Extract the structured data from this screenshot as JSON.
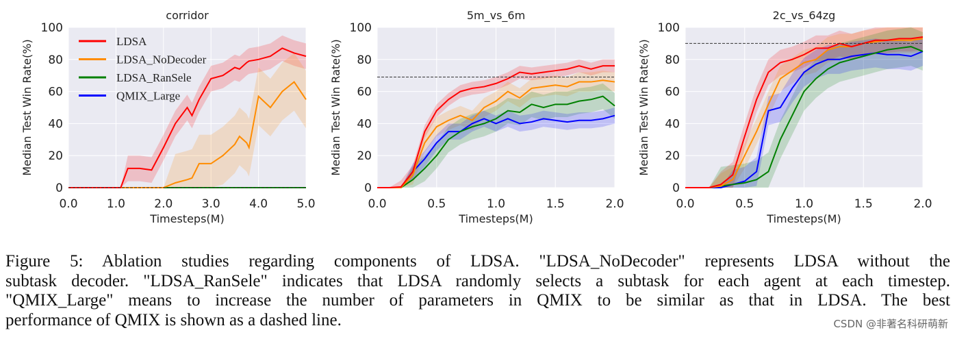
{
  "chart_data": [
    {
      "type": "line",
      "title": "corridor",
      "xlabel": "Timesteps(M)",
      "ylabel": "Median Test Win Rate(%)",
      "xlim": [
        0,
        5
      ],
      "ylim": [
        0,
        100
      ],
      "xticks": [
        "0.0",
        "1.0",
        "2.0",
        "3.0",
        "4.0",
        "5.0"
      ],
      "yticks": [
        "0",
        "20",
        "40",
        "60",
        "80",
        "100"
      ],
      "grid": true,
      "legend": "top-left",
      "qmix_best": 0,
      "x": [
        0,
        0.5,
        1.0,
        1.1,
        1.25,
        1.5,
        1.75,
        2.0,
        2.25,
        2.5,
        2.6,
        2.75,
        3.0,
        3.25,
        3.5,
        3.6,
        3.75,
        3.8,
        4.0,
        4.25,
        4.5,
        4.75,
        5.0
      ],
      "series": [
        {
          "name": "LDSA",
          "color": "#ff0000",
          "spread": 8,
          "values": [
            0,
            0,
            0,
            0,
            12,
            12,
            11,
            25,
            40,
            50,
            45,
            55,
            68,
            70,
            75,
            74,
            78,
            79,
            80,
            82,
            87,
            84,
            82
          ]
        },
        {
          "name": "LDSA_NoDecoder",
          "color": "#ff8c00",
          "spread": 18,
          "values": [
            0,
            0,
            0,
            0,
            0,
            0,
            0,
            0,
            3,
            5,
            6,
            15,
            15,
            20,
            27,
            32,
            28,
            25,
            57,
            50,
            60,
            66,
            55
          ]
        },
        {
          "name": "LDSA_RanSele",
          "color": "#008000",
          "spread": 0,
          "values": [
            0,
            0,
            0,
            0,
            0,
            0,
            0,
            0,
            0,
            0,
            0,
            0,
            0,
            0,
            0,
            0,
            0,
            0,
            0,
            0,
            0,
            0,
            0
          ]
        },
        {
          "name": "QMIX_Large",
          "color": "#0000ff",
          "spread": 0,
          "values": [
            0,
            0,
            0,
            0,
            0,
            0,
            0,
            0,
            0,
            0,
            0,
            0,
            0,
            0,
            0,
            0,
            0,
            0,
            0,
            0,
            0,
            0,
            0
          ]
        }
      ]
    },
    {
      "type": "line",
      "title": "5m_vs_6m",
      "xlabel": "Timesteps(M)",
      "ylabel": "Median Test Win Rate(%)",
      "xlim": [
        0,
        2
      ],
      "ylim": [
        0,
        100
      ],
      "xticks": [
        "0.0",
        "0.5",
        "1.0",
        "1.5",
        "2.0"
      ],
      "yticks": [
        "0",
        "20",
        "40",
        "60",
        "80",
        "100"
      ],
      "grid": true,
      "qmix_best": 69,
      "x": [
        0,
        0.1,
        0.2,
        0.3,
        0.4,
        0.5,
        0.6,
        0.7,
        0.8,
        0.9,
        1.0,
        1.1,
        1.2,
        1.3,
        1.4,
        1.5,
        1.6,
        1.7,
        1.8,
        1.9,
        2.0
      ],
      "series": [
        {
          "name": "LDSA",
          "color": "#ff0000",
          "spread": 4,
          "values": [
            0,
            0,
            0.5,
            10,
            35,
            48,
            55,
            60,
            62,
            63,
            65,
            68,
            72,
            71,
            72,
            73,
            74,
            76,
            74,
            76,
            76
          ]
        },
        {
          "name": "LDSA_NoDecoder",
          "color": "#ff8c00",
          "spread": 6,
          "values": [
            0,
            0,
            0,
            8,
            28,
            38,
            42,
            45,
            42,
            50,
            54,
            60,
            56,
            62,
            63,
            64,
            63,
            66,
            66,
            67,
            66
          ]
        },
        {
          "name": "LDSA_RanSele",
          "color": "#008000",
          "spread": 8,
          "values": [
            0,
            0,
            0,
            5,
            12,
            20,
            30,
            35,
            38,
            40,
            43,
            48,
            47,
            52,
            50,
            52,
            52,
            54,
            55,
            57,
            51
          ]
        },
        {
          "name": "QMIX_Large",
          "color": "#0000ff",
          "spread": 5,
          "values": [
            0,
            0,
            0,
            10,
            18,
            28,
            35,
            35,
            40,
            43,
            40,
            43,
            40,
            41,
            43,
            42,
            41,
            42,
            42,
            43,
            45
          ]
        }
      ]
    },
    {
      "type": "line",
      "title": "2c_vs_64zg",
      "xlabel": "Timesteps(M)",
      "ylabel": "Median Test Win Rate(%)",
      "xlim": [
        0,
        2
      ],
      "ylim": [
        0,
        100
      ],
      "xticks": [
        "0.0",
        "0.5",
        "1.0",
        "1.5",
        "2.0"
      ],
      "yticks": [
        "0",
        "20",
        "40",
        "60",
        "80",
        "100"
      ],
      "grid": true,
      "qmix_best": 90,
      "x": [
        0,
        0.1,
        0.2,
        0.3,
        0.4,
        0.5,
        0.6,
        0.7,
        0.8,
        0.9,
        1.0,
        1.1,
        1.2,
        1.3,
        1.4,
        1.5,
        1.6,
        1.7,
        1.8,
        1.9,
        2.0
      ],
      "series": [
        {
          "name": "LDSA",
          "color": "#ff0000",
          "spread": 8,
          "values": [
            0,
            0,
            0,
            2,
            8,
            32,
            55,
            72,
            78,
            80,
            83,
            87,
            87,
            90,
            88,
            90,
            92,
            92,
            93,
            93,
            94
          ]
        },
        {
          "name": "LDSA_NoDecoder",
          "color": "#ff8c00",
          "spread": 8,
          "values": [
            0,
            0,
            0,
            1,
            5,
            20,
            35,
            52,
            68,
            73,
            78,
            80,
            86,
            88,
            88,
            90,
            91,
            92,
            92,
            92,
            93
          ]
        },
        {
          "name": "LDSA_RanSele",
          "color": "#008000",
          "spread": 12,
          "values": [
            0,
            0,
            0,
            1,
            2,
            3,
            5,
            10,
            30,
            45,
            60,
            68,
            74,
            78,
            80,
            82,
            84,
            86,
            87,
            88,
            85
          ]
        },
        {
          "name": "QMIX_Large",
          "color": "#0000ff",
          "spread": 9,
          "values": [
            0,
            0,
            0,
            0,
            2,
            4,
            10,
            48,
            50,
            62,
            72,
            77,
            80,
            80,
            82,
            83,
            84,
            83,
            83,
            82,
            85
          ]
        }
      ]
    }
  ],
  "caption": {
    "lines": [
      "Figure 5:  Ablation studies regarding components of LDSA. \"LDSA_NoDecoder\" represents LDSA without the",
      "subtask decoder. \"LDSA_RanSele\" indicates that LDSA randomly selects a subtask for each agent at each timestep.",
      "\"QMIX_Large\" means to increase the number of parameters in QMIX to be similar as that in LDSA. The best",
      "performance of QMIX is shown as a dashed line."
    ]
  },
  "watermark": "CSDN @非著名科研萌新",
  "colors": {
    "plot_bg": "#eaeaf2",
    "grid": "#ffffff"
  }
}
